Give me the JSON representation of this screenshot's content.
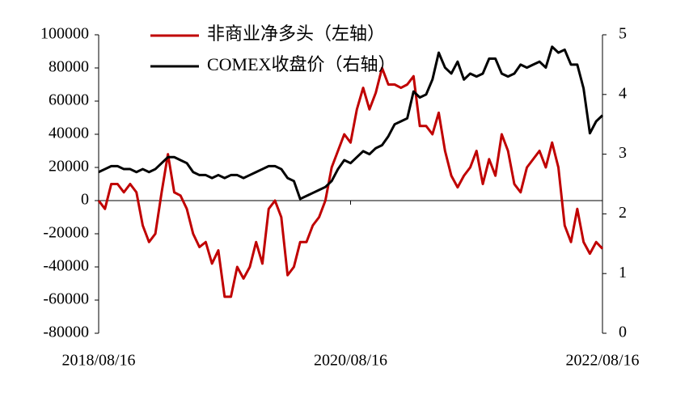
{
  "chart_data": {
    "type": "line",
    "categories": [
      "2018/08/16",
      null,
      null,
      null,
      null,
      null,
      null,
      null,
      null,
      null,
      null,
      null,
      null,
      null,
      null,
      null,
      null,
      null,
      null,
      null,
      null,
      null,
      null,
      null,
      null,
      null,
      null,
      null,
      null,
      null,
      null,
      null,
      null,
      null,
      null,
      null,
      null,
      null,
      null,
      null,
      "2020/08/16",
      null,
      null,
      null,
      null,
      null,
      null,
      null,
      null,
      null,
      null,
      null,
      null,
      null,
      null,
      null,
      null,
      null,
      null,
      null,
      null,
      null,
      null,
      null,
      null,
      null,
      null,
      null,
      null,
      null,
      null,
      null,
      null,
      null,
      null,
      null,
      null,
      null,
      null,
      null,
      "2022/08/16"
    ],
    "series": [
      {
        "name": "非商业净多头（左轴）",
        "color": "#c00000",
        "values": [
          0,
          -5000,
          10000,
          10000,
          5000,
          10000,
          5000,
          -15000,
          -25000,
          -20000,
          5000,
          28000,
          5000,
          3000,
          -5000,
          -20000,
          -28000,
          -25000,
          -38000,
          -30000,
          -58000,
          -58000,
          -40000,
          -47000,
          -40000,
          -25000,
          -38000,
          -5000,
          0,
          -10000,
          -45000,
          -40000,
          -25000,
          -25000,
          -15000,
          -10000,
          0,
          20000,
          30000,
          40000,
          35000,
          55000,
          68000,
          55000,
          65000,
          80000,
          70000,
          70000,
          68000,
          70000,
          75000,
          45000,
          45000,
          40000,
          53000,
          30000,
          15000,
          8000,
          15000,
          20000,
          30000,
          10000,
          25000,
          15000,
          40000,
          30000,
          10000,
          5000,
          20000,
          25000,
          30000,
          20000,
          35000,
          20000,
          -15000,
          -25000,
          -5000,
          -25000,
          -32000,
          -25000,
          -29000
        ]
      },
      {
        "name": "COMEX收盘价（右轴）",
        "color": "#000000",
        "axis": "y2",
        "values": [
          2.7,
          2.75,
          2.8,
          2.8,
          2.75,
          2.75,
          2.7,
          2.75,
          2.7,
          2.75,
          2.85,
          2.95,
          2.95,
          2.9,
          2.85,
          2.7,
          2.65,
          2.65,
          2.6,
          2.65,
          2.6,
          2.65,
          2.65,
          2.6,
          2.65,
          2.7,
          2.75,
          2.8,
          2.8,
          2.75,
          2.6,
          2.55,
          2.25,
          2.3,
          2.35,
          2.4,
          2.45,
          2.55,
          2.75,
          2.9,
          2.85,
          2.95,
          3.05,
          3.0,
          3.1,
          3.15,
          3.3,
          3.5,
          3.55,
          3.6,
          4.05,
          3.95,
          4.0,
          4.25,
          4.7,
          4.45,
          4.35,
          4.55,
          4.25,
          4.35,
          4.3,
          4.35,
          4.6,
          4.6,
          4.35,
          4.3,
          4.35,
          4.5,
          4.45,
          4.5,
          4.55,
          4.45,
          4.8,
          4.7,
          4.75,
          4.5,
          4.5,
          4.1,
          3.35,
          3.55,
          3.65
        ]
      }
    ],
    "ylim": [
      -80000,
      100000
    ],
    "yticks": [
      -80000,
      -60000,
      -40000,
      -20000,
      0,
      20000,
      40000,
      60000,
      80000,
      100000
    ],
    "y2lim": [
      0,
      5
    ],
    "y2ticks": [
      0,
      1,
      2,
      3,
      4,
      5
    ]
  }
}
